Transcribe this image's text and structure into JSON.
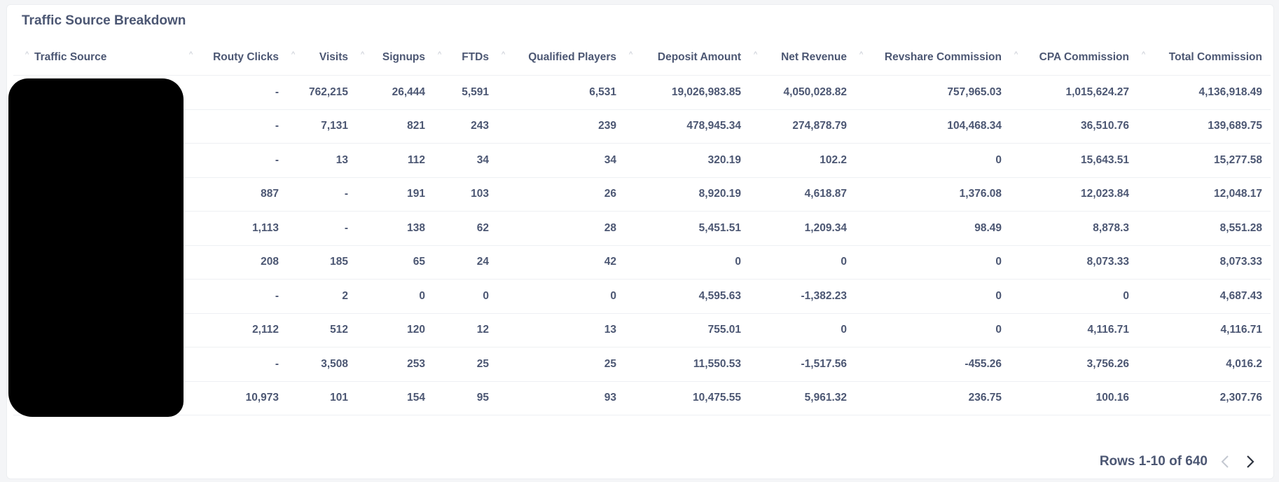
{
  "card": {
    "title": "Traffic Source Breakdown"
  },
  "table": {
    "columns": [
      "Traffic Source",
      "Routy Clicks",
      "Visits",
      "Signups",
      "FTDs",
      "Qualified Players",
      "Deposit Amount",
      "Net Revenue",
      "Revshare Commission",
      "CPA Commission",
      "Total Commission"
    ],
    "rows": [
      [
        "",
        "-",
        "762,215",
        "26,444",
        "5,591",
        "6,531",
        "19,026,983.85",
        "4,050,028.82",
        "757,965.03",
        "1,015,624.27",
        "4,136,918.49"
      ],
      [
        "",
        "-",
        "7,131",
        "821",
        "243",
        "239",
        "478,945.34",
        "274,878.79",
        "104,468.34",
        "36,510.76",
        "139,689.75"
      ],
      [
        "",
        "-",
        "13",
        "112",
        "34",
        "34",
        "320.19",
        "102.2",
        "0",
        "15,643.51",
        "15,277.58"
      ],
      [
        "",
        "887",
        "-",
        "191",
        "103",
        "26",
        "8,920.19",
        "4,618.87",
        "1,376.08",
        "12,023.84",
        "12,048.17"
      ],
      [
        "",
        "1,113",
        "-",
        "138",
        "62",
        "28",
        "5,451.51",
        "1,209.34",
        "98.49",
        "8,878.3",
        "8,551.28"
      ],
      [
        "",
        "208",
        "185",
        "65",
        "24",
        "42",
        "0",
        "0",
        "0",
        "8,073.33",
        "8,073.33"
      ],
      [
        "",
        "-",
        "2",
        "0",
        "0",
        "0",
        "4,595.63",
        "-1,382.23",
        "0",
        "0",
        "4,687.43"
      ],
      [
        "",
        "2,112",
        "512",
        "120",
        "12",
        "13",
        "755.01",
        "0",
        "0",
        "4,116.71",
        "4,116.71"
      ],
      [
        "",
        "-",
        "3,508",
        "253",
        "25",
        "25",
        "11,550.53",
        "-1,517.56",
        "-455.26",
        "3,756.26",
        "4,016.2"
      ],
      [
        "",
        "10,973",
        "101",
        "154",
        "95",
        "93",
        "10,475.55",
        "5,961.32",
        "236.75",
        "100.16",
        "2,307.76"
      ]
    ]
  },
  "pagination": {
    "label": "Rows 1-10 of 640"
  },
  "colors": {
    "text": "#4c5773",
    "border": "#eef0f3",
    "redaction": "#000000"
  }
}
